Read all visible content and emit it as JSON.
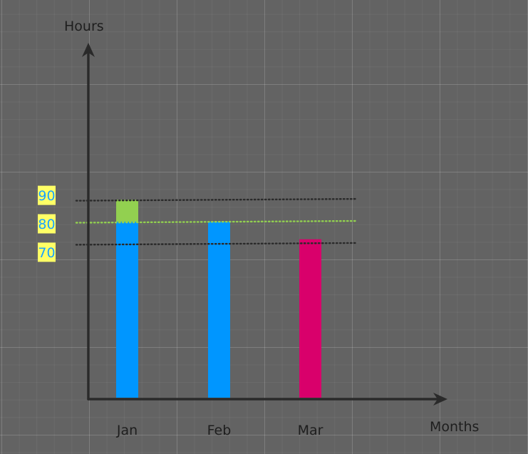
{
  "chart_data": {
    "type": "bar",
    "xlabel": "Months",
    "ylabel": "Hours",
    "categories": [
      "Jan",
      "Feb",
      "Mar"
    ],
    "bars": [
      {
        "category": "Jan",
        "segments": [
          {
            "value": 80,
            "color": "#0096ff"
          },
          {
            "value": 10,
            "color": "#92d050"
          }
        ]
      },
      {
        "category": "Feb",
        "segments": [
          {
            "value": 80,
            "color": "#0096ff"
          }
        ]
      },
      {
        "category": "Mar",
        "segments": [
          {
            "value": 72,
            "color": "#d9006b"
          }
        ]
      }
    ],
    "reference_lines": [
      {
        "value": 90,
        "label": "90",
        "color": "#2a2a2a"
      },
      {
        "value": 80,
        "label": "80",
        "color": "#92d050"
      },
      {
        "value": 70,
        "label": "70",
        "color": "#2a2a2a"
      }
    ],
    "label_style": {
      "background": "#ffff66",
      "text_color": "#1aa3ff"
    },
    "axis_color": "#2a2a2a",
    "grid": true
  }
}
